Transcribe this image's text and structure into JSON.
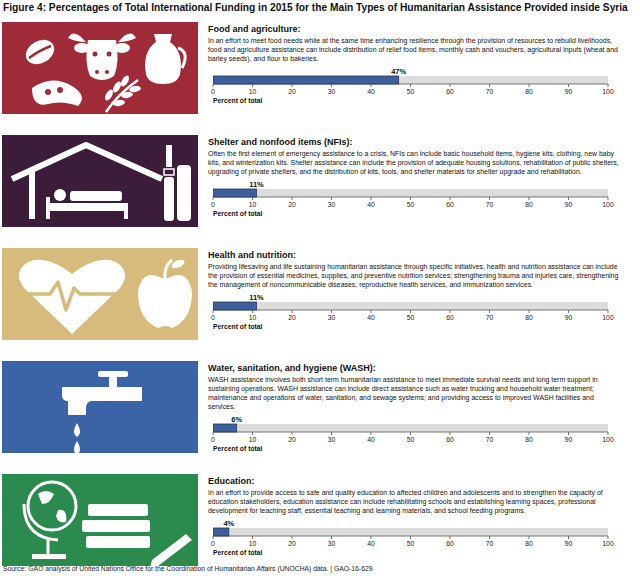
{
  "title": "Figure 4: Percentages of Total International Funding in 2015 for the Main Types of Humanitarian Assistance Provided inside Syria",
  "source": "Source: GAO analysis of United Nations Office for the Coordination of Humanitarian Affairs (UNOCHA) data.  |  GAO-16-629",
  "chart_data": [
    {
      "type": "bar",
      "orientation": "horizontal",
      "title": "Food and agriculture:",
      "subtitle": "In an effort to meet food needs while at the same time enhancing resilience through the provision of resources to rebuild livelihoods, food and agriculture assistance can include distribution of relief food items, monthly cash and vouchers, agricultural inputs (wheat and barley seeds), and flour to bakeries.",
      "categories": [
        null
      ],
      "values": [
        47
      ],
      "value_labels": [
        "47%"
      ],
      "data_labels": true,
      "color": "#3f5f9b",
      "xlabel": "Percent of total",
      "xlim": [
        0,
        100
      ],
      "xticks": [
        0,
        10,
        20,
        30,
        40,
        50,
        60,
        70,
        80,
        90,
        100
      ]
    },
    {
      "type": "bar",
      "orientation": "horizontal",
      "title": "Shelter and nonfood items (NFIs):",
      "subtitle": "Often the first element of emergency assistance to a crisis, NFIs can include basic household items, hygiene kits, clothing, new baby kits, and winterization kits. Shelter assistance can include the provision of adequate housing solutions, rehabilitation of public shelters, upgrading of private shelters, and the distribution of kits, tools, and shelter materials for shelter upgrade and rehabilitation.",
      "categories": [
        null
      ],
      "values": [
        11
      ],
      "value_labels": [
        "11%"
      ],
      "data_labels": true,
      "color": "#3f5f9b",
      "xlabel": "Percent of total",
      "xlim": [
        0,
        100
      ],
      "xticks": [
        0,
        10,
        20,
        30,
        40,
        50,
        60,
        70,
        80,
        90,
        100
      ]
    },
    {
      "type": "bar",
      "orientation": "horizontal",
      "title": "Health and nutrition:",
      "subtitle": "Providing lifesaving and life sustaining humanitarian assistance through specific initiatives, health and nutrition assistance can include the provision of essential medicines, supplies, and preventive nutrition services; strengthening trauma and injuries care, strengthening the management of noncommunicable diseases, reproductive health services, and immunization services.",
      "categories": [
        null
      ],
      "values": [
        11
      ],
      "value_labels": [
        "11%"
      ],
      "data_labels": true,
      "color": "#3f5f9b",
      "xlabel": "Percent of total",
      "xlim": [
        0,
        100
      ],
      "xticks": [
        0,
        10,
        20,
        30,
        40,
        50,
        60,
        70,
        80,
        90,
        100
      ]
    },
    {
      "type": "bar",
      "orientation": "horizontal",
      "title": "Water, sanitation, and hygiene (WASH):",
      "subtitle": "WASH assistance involves both short term humanitarian assistance to meet immediate survival needs and long term support in sustaining operations. WASH assistance can include direct assistance such as water trucking and household water treatment; maintenance and operations of water, sanitation, and sewage systems; and providing access to improved WASH facilities and services.",
      "categories": [
        null
      ],
      "values": [
        6
      ],
      "value_labels": [
        "6%"
      ],
      "data_labels": true,
      "color": "#3f5f9b",
      "xlabel": "Percent of total",
      "xlim": [
        0,
        100
      ],
      "xticks": [
        0,
        10,
        20,
        30,
        40,
        50,
        60,
        70,
        80,
        90,
        100
      ]
    },
    {
      "type": "bar",
      "orientation": "horizontal",
      "title": "Education:",
      "subtitle": "In an effort to provide access to safe and quality education to affected children and adolescents and to strengthen the capacity of education stakeholders, education assistance can include rehabilitating schools and establishing learning spaces, professional development for teaching staff, essential teaching and learning materials, and school feeding programs.",
      "categories": [
        null
      ],
      "values": [
        4
      ],
      "value_labels": [
        "4%"
      ],
      "data_labels": true,
      "color": "#3f5f9b",
      "xlabel": "Percent of total",
      "xlim": [
        0,
        100
      ],
      "xticks": [
        0,
        10,
        20,
        30,
        40,
        50,
        60,
        70,
        80,
        90,
        100
      ]
    }
  ]
}
